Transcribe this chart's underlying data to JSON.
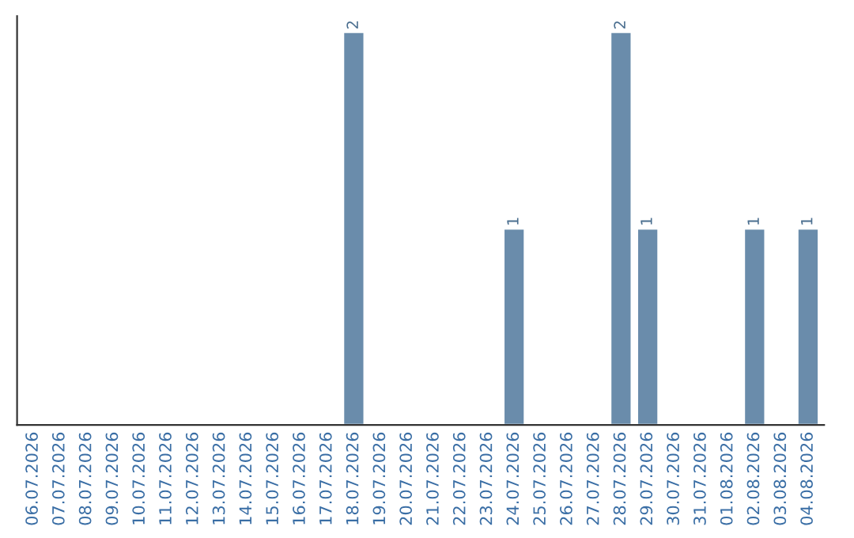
{
  "chart_data": {
    "type": "bar",
    "categories": [
      "06.07.2026",
      "07.07.2026",
      "08.07.2026",
      "09.07.2026",
      "10.07.2026",
      "11.07.2026",
      "12.07.2026",
      "13.07.2026",
      "14.07.2026",
      "15.07.2026",
      "16.07.2026",
      "17.07.2026",
      "18.07.2026",
      "19.07.2026",
      "20.07.2026",
      "21.07.2026",
      "22.07.2026",
      "23.07.2026",
      "24.07.2026",
      "25.07.2026",
      "26.07.2026",
      "27.07.2026",
      "28.07.2026",
      "29.07.2026",
      "30.07.2026",
      "31.07.2026",
      "01.08.2026",
      "02.08.2026",
      "03.08.2026",
      "04.08.2026"
    ],
    "values": [
      null,
      null,
      null,
      null,
      null,
      null,
      null,
      null,
      null,
      null,
      null,
      null,
      2,
      null,
      null,
      null,
      null,
      null,
      1,
      null,
      null,
      null,
      2,
      1,
      null,
      null,
      null,
      1,
      null,
      1
    ],
    "value_labels": [
      null,
      null,
      null,
      null,
      null,
      null,
      null,
      null,
      null,
      null,
      null,
      null,
      "2",
      null,
      null,
      null,
      null,
      null,
      "1",
      null,
      null,
      null,
      "2",
      "1",
      null,
      null,
      null,
      "1",
      null,
      "1"
    ],
    "color": "#6a8cab",
    "tick_labels": "x",
    "grid": false,
    "legend": false
  }
}
